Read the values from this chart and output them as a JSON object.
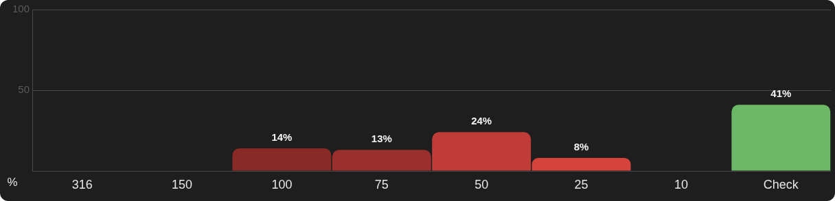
{
  "chart_data": {
    "type": "bar",
    "ylabel": "%",
    "categories": [
      "316",
      "150",
      "100",
      "75",
      "50",
      "25",
      "10",
      "Check"
    ],
    "values": [
      0,
      0,
      14,
      13,
      24,
      8,
      0,
      41
    ],
    "colors": [
      "#8a2a27",
      "#8a2a27",
      "#8a2a27",
      "#9b2f2d",
      "#bf3c38",
      "#d4443c",
      "#d4443c",
      "#6bb867"
    ],
    "value_labels": [
      null,
      null,
      "14%",
      "13%",
      "24%",
      "8%",
      null,
      "41%"
    ],
    "ylim": [
      0,
      100
    ],
    "yticks": [
      {
        "value": 0,
        "label": null
      },
      50,
      100
    ],
    "grid": "y"
  }
}
